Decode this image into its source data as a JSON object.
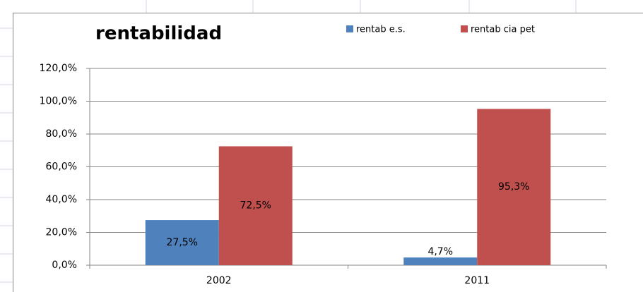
{
  "chart_data": {
    "type": "bar",
    "title": "rentabilidad",
    "categories": [
      "2002",
      "2011"
    ],
    "series": [
      {
        "name": "rentab e.s.",
        "color": "#4f81bd",
        "values": [
          27.5,
          4.7
        ],
        "value_labels": [
          "27,5%",
          "4,7%"
        ]
      },
      {
        "name": "rentab cia pet",
        "color": "#c0504d",
        "values": [
          72.5,
          95.3
        ],
        "value_labels": [
          "72,5%",
          "95,3%"
        ]
      }
    ],
    "ylim": [
      0,
      120
    ],
    "yticks": [
      {
        "value": 0,
        "label": "0,0%"
      },
      {
        "value": 20,
        "label": "20,0%"
      },
      {
        "value": 40,
        "label": "40,0%"
      },
      {
        "value": 60,
        "label": "60,0%"
      },
      {
        "value": 80,
        "label": "80,0%"
      },
      {
        "value": 100,
        "label": "100,0%"
      },
      {
        "value": 120,
        "label": "120,0%"
      }
    ],
    "grid": true,
    "legend": "top"
  }
}
